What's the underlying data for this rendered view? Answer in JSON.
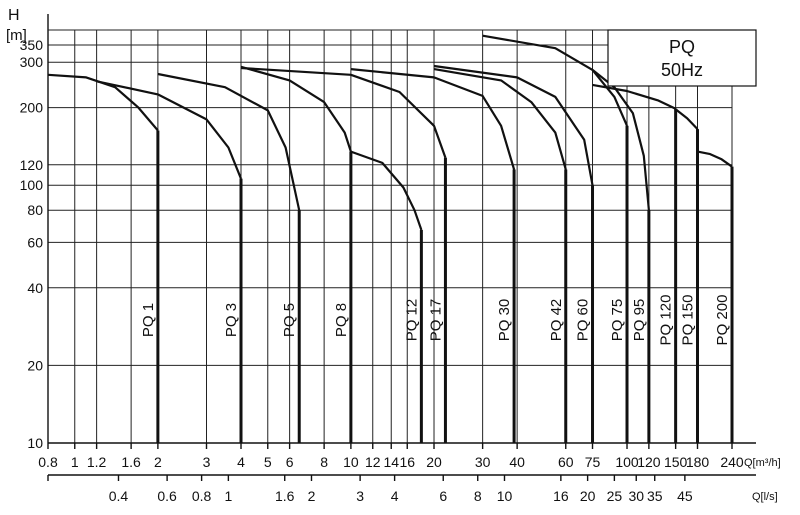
{
  "chart_data": {
    "type": "line",
    "title": "PQ",
    "subtitle": "50Hz",
    "ylabel": "H",
    "yunit": "[m]",
    "xlabel": "Q[m³/h]",
    "x2label": "Q[l/s]",
    "xscale": "log",
    "yscale": "log",
    "xlim": [
      0.8,
      240
    ],
    "ylim": [
      10,
      400
    ],
    "grid": true,
    "legend": "top-right",
    "x_ticks": [
      "0.8",
      "1",
      "1.2",
      "1.6",
      "2",
      "3",
      "4",
      "5",
      "6",
      "8",
      "10",
      "12",
      "14",
      "16",
      "20",
      "30",
      "40",
      "60",
      "75",
      "100",
      "120",
      "150",
      "180",
      "240"
    ],
    "y_ticks": [
      "10",
      "20",
      "40",
      "60",
      "80",
      "100",
      "120",
      "200",
      "300",
      "350"
    ],
    "x2_ticks": [
      "0.4",
      "0.6",
      "0.8",
      "1",
      "1.6",
      "2",
      "3",
      "4",
      "6",
      "8",
      "10",
      "16",
      "20",
      "25",
      "30",
      "35",
      "45"
    ],
    "series": [
      {
        "name": "PQ 1",
        "x": [
          0.8,
          1.1,
          1.4,
          1.7,
          2.0
        ],
        "y": [
          268,
          262,
          240,
          200,
          163
        ],
        "qmax": 2
      },
      {
        "name": "PQ 3",
        "x": [
          1.2,
          2.0,
          3.0,
          3.6,
          4.0
        ],
        "y": [
          253,
          225,
          180,
          140,
          106
        ],
        "qmax": 4
      },
      {
        "name": "PQ 5",
        "x": [
          2.0,
          3.5,
          5.0,
          5.8,
          6.5
        ],
        "y": [
          270,
          240,
          195,
          140,
          80
        ],
        "qmax": 6.5
      },
      {
        "name": "PQ 8",
        "x": [
          4.0,
          6.0,
          8.0,
          9.5,
          10.0
        ],
        "y": [
          288,
          255,
          210,
          160,
          135
        ],
        "qmax": 10
      },
      {
        "name": "PQ 12",
        "x": [
          10.0,
          13.0,
          15.5,
          17.0,
          18.0
        ],
        "y": [
          135,
          122,
          98,
          80,
          67
        ],
        "qmax": 18
      },
      {
        "name": "PQ 17",
        "x": [
          4.0,
          10.0,
          15.0,
          20.0,
          22.0
        ],
        "y": [
          285,
          268,
          230,
          170,
          128
        ],
        "qmax": 22
      },
      {
        "name": "PQ 30",
        "x": [
          10.0,
          20.0,
          30.0,
          35.0,
          39.0
        ],
        "y": [
          282,
          262,
          222,
          170,
          115
        ],
        "qmax": 39
      },
      {
        "name": "PQ 42",
        "x": [
          20.0,
          35.0,
          45.0,
          55.0,
          60.0
        ],
        "y": [
          282,
          255,
          210,
          160,
          115
        ],
        "qmax": 60
      },
      {
        "name": "PQ 60",
        "x": [
          20.0,
          40.0,
          55.0,
          70.0,
          75.0
        ],
        "y": [
          290,
          262,
          220,
          150,
          100
        ],
        "qmax": 75
      },
      {
        "name": "PQ 75",
        "x": [
          30.0,
          55.0,
          75.0,
          90.0,
          100.0
        ],
        "y": [
          380,
          340,
          280,
          220,
          170
        ],
        "qmax": 100
      },
      {
        "name": "PQ 95",
        "x": [
          75.0,
          90.0,
          105.0,
          115.0,
          120.0
        ],
        "y": [
          280,
          240,
          190,
          130,
          80
        ],
        "qmax": 120
      },
      {
        "name": "PQ 120",
        "x": [
          75.0,
          100.0,
          130.0,
          150.0
        ],
        "y": [
          245,
          232,
          213,
          198
        ],
        "qmax": 150
      },
      {
        "name": "PQ 150",
        "x": [
          150.0,
          165.0,
          180.0
        ],
        "y": [
          197,
          182,
          165
        ],
        "qmax": 180
      },
      {
        "name": "PQ 200",
        "x": [
          180.0,
          200.0,
          220.0,
          240.0
        ],
        "y": [
          135,
          132,
          126,
          118
        ],
        "qmax": 240
      }
    ]
  }
}
